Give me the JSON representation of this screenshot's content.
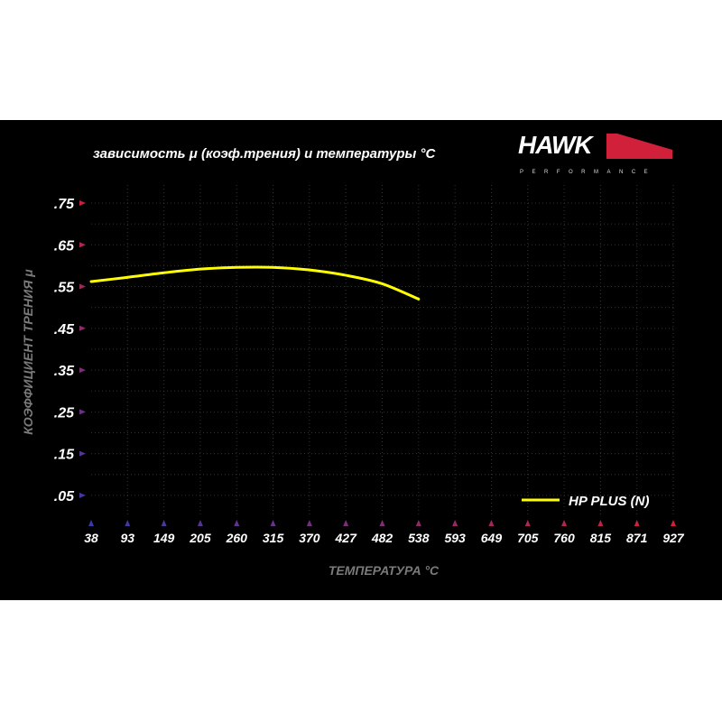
{
  "chart_data": {
    "type": "line",
    "title": "зависимость μ (коэф.трения) и температуры °C",
    "xlabel": "ТЕМПЕРАТУРА °C",
    "ylabel": "КОЭФФИЦИЕНТ ТРЕНИЯ μ",
    "x_ticks": [
      "38",
      "93",
      "149",
      "205",
      "260",
      "315",
      "370",
      "427",
      "482",
      "538",
      "593",
      "649",
      "705",
      "760",
      "815",
      "871",
      "927"
    ],
    "y_ticks": [
      ".75",
      ".65",
      ".55",
      ".45",
      ".35",
      ".25",
      ".15",
      ".05"
    ],
    "y_tick_values": [
      0.75,
      0.65,
      0.55,
      0.45,
      0.35,
      0.25,
      0.15,
      0.05
    ],
    "xlim": [
      38,
      927
    ],
    "ylim": [
      0,
      0.79
    ],
    "grid": true,
    "legend_position": "bottom-right",
    "series": [
      {
        "name": "HP PLUS (N)",
        "color": "#ffff00",
        "x": [
          38,
          93,
          149,
          205,
          260,
          315,
          370,
          427,
          482,
          538
        ],
        "y": [
          0.562,
          0.572,
          0.583,
          0.592,
          0.596,
          0.596,
          0.59,
          0.577,
          0.557,
          0.52
        ]
      }
    ]
  },
  "logo": {
    "brand": "HAWK",
    "sub": "PERFORMANCE"
  },
  "colors": {
    "axis_start": "#3a3aa8",
    "axis_end": "#d0203a",
    "tick_text": "#ffffff",
    "label_gray": "#7a7a7a"
  }
}
